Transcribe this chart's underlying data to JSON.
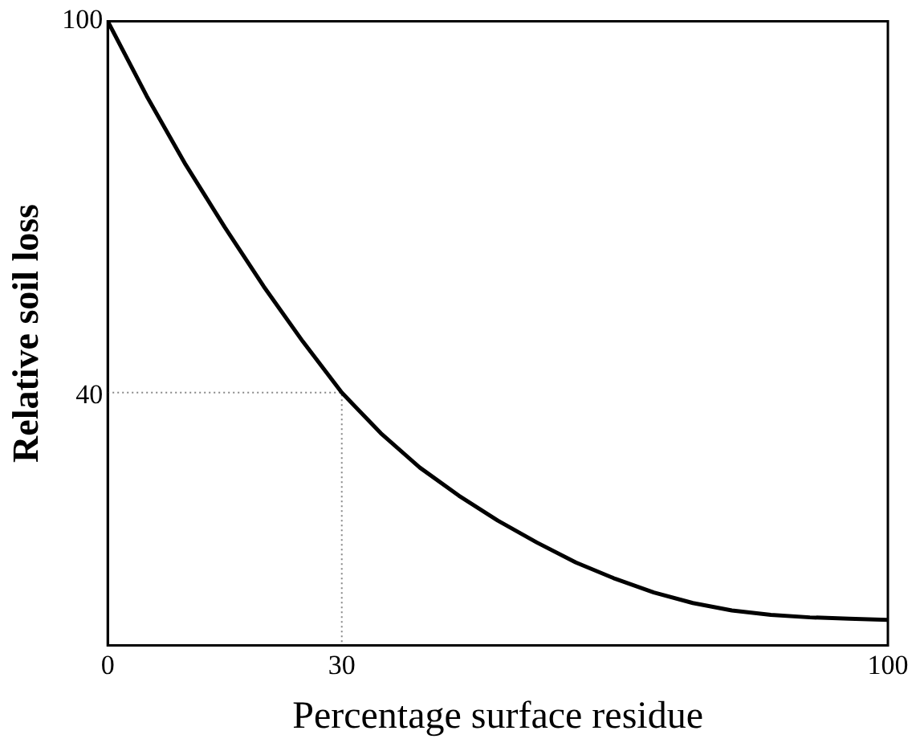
{
  "chart_data": {
    "type": "line",
    "xlabel": "Percentage surface residue",
    "ylabel": "Relative soil loss",
    "xlim": [
      0,
      100
    ],
    "ylim": [
      0,
      100
    ],
    "xticks": [
      0,
      30,
      100
    ],
    "yticks": [
      40,
      100
    ],
    "grid": false,
    "legend": false,
    "marker": "none",
    "series": [
      {
        "color": "#000000",
        "x": [
          0,
          5,
          10,
          15,
          20,
          25,
          30,
          35,
          40,
          45,
          50,
          55,
          60,
          65,
          70,
          75,
          80,
          85,
          90,
          95,
          100
        ],
        "values": [
          100,
          88,
          77,
          67,
          57.5,
          48.7,
          40.5,
          34,
          28.5,
          24,
          20,
          16.5,
          13.3,
          10.7,
          8.5,
          6.8,
          5.6,
          4.9,
          4.5,
          4.3,
          4.1
        ]
      },
      {
        "color": "#888888",
        "line_style": "dotted",
        "x": [
          0,
          30,
          30
        ],
        "values": [
          40.5,
          40.5,
          0
        ]
      }
    ]
  }
}
